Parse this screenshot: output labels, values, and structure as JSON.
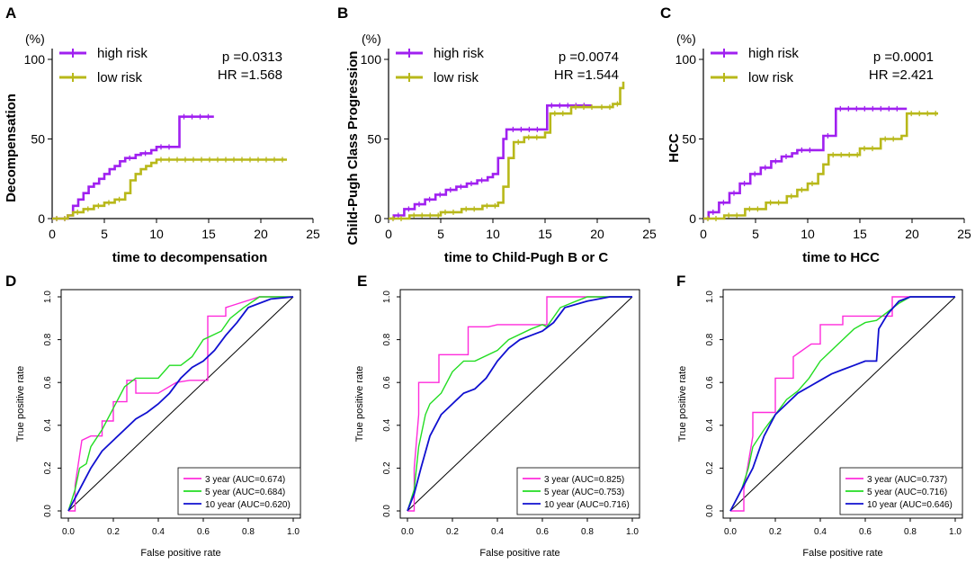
{
  "colors": {
    "high": "#a020f0",
    "low": "#b8b81a",
    "roc3": "#ff2bdb",
    "roc5": "#22dd22",
    "roc10": "#1010d0"
  },
  "chart_data": [
    {
      "panel": "A",
      "type": "line",
      "step": true,
      "xlabel": "time to decompensation",
      "ylabel": "Decompensation",
      "yunit": "(%)",
      "xlim": [
        0,
        25
      ],
      "ylim": [
        0,
        100
      ],
      "xticks": [
        "0",
        "5",
        "10",
        "15",
        "20",
        "25"
      ],
      "yticks": [
        "0",
        "50",
        "100"
      ],
      "stats": {
        "p": "p =0.0313",
        "hr": "HR =1.568"
      },
      "series": [
        {
          "name": "high risk",
          "color_key": "high",
          "x": [
            0,
            1.5,
            2.0,
            2.5,
            3.0,
            3.5,
            4.0,
            4.5,
            5.0,
            5.5,
            6.0,
            6.5,
            7.0,
            8.0,
            8.5,
            9.5,
            10.0,
            12.0,
            12.2,
            15.5
          ],
          "y": [
            0,
            2,
            8,
            12,
            16,
            20,
            22,
            25,
            28,
            31,
            33,
            36,
            38,
            40,
            41,
            43,
            45,
            45,
            64,
            64
          ]
        },
        {
          "name": "low risk",
          "color_key": "low",
          "x": [
            0,
            1.5,
            2.0,
            3.0,
            4.0,
            5.0,
            6.0,
            7.0,
            7.5,
            8.0,
            8.5,
            9.0,
            9.5,
            10.0,
            22.5
          ],
          "y": [
            0,
            2,
            4,
            6,
            8,
            10,
            12,
            16,
            24,
            28,
            31,
            33,
            35,
            37,
            37
          ]
        }
      ]
    },
    {
      "panel": "B",
      "type": "line",
      "step": true,
      "xlabel": "time to Child-Pugh  B or C",
      "ylabel": "Child-Pugh Class Progression",
      "yunit": "(%)",
      "xlim": [
        0,
        25
      ],
      "ylim": [
        0,
        100
      ],
      "xticks": [
        "0",
        "5",
        "10",
        "15",
        "20",
        "25"
      ],
      "yticks": [
        "0",
        "50",
        "100"
      ],
      "stats": {
        "p": "p =0.0074",
        "hr": "HR =1.544"
      },
      "series": [
        {
          "name": "high risk",
          "color_key": "high",
          "x": [
            0,
            0.5,
            1.5,
            2.5,
            3.5,
            4.5,
            5.5,
            6.5,
            7.5,
            8.5,
            9.5,
            10.0,
            10.5,
            11.0,
            11.3,
            11.5,
            15.0,
            15.2,
            19.5
          ],
          "y": [
            0,
            2,
            6,
            9,
            12,
            15,
            18,
            20,
            22,
            24,
            26,
            28,
            38,
            50,
            56,
            56,
            56,
            71,
            71
          ]
        },
        {
          "name": "low risk",
          "color_key": "low",
          "x": [
            0,
            2.0,
            5.0,
            7.0,
            9.0,
            10.5,
            11.0,
            11.5,
            12.0,
            13.0,
            15.0,
            15.5,
            17.5,
            20.0,
            21.5,
            22.2,
            22.5
          ],
          "y": [
            0,
            2,
            4,
            6,
            8,
            10,
            20,
            38,
            48,
            51,
            54,
            66,
            70,
            70,
            72,
            82,
            86
          ]
        }
      ]
    },
    {
      "panel": "C",
      "type": "line",
      "step": true,
      "xlabel": "time to HCC",
      "ylabel": "HCC",
      "yunit": "(%)",
      "xlim": [
        0,
        25
      ],
      "ylim": [
        0,
        100
      ],
      "xticks": [
        "0",
        "5",
        "10",
        "15",
        "20",
        "25"
      ],
      "yticks": [
        "0",
        "50",
        "100"
      ],
      "stats": {
        "p": "p =0.0001",
        "hr": "HR =2.421"
      },
      "series": [
        {
          "name": "high risk",
          "color_key": "high",
          "x": [
            0,
            0.5,
            1.5,
            2.5,
            3.5,
            4.5,
            5.5,
            6.5,
            7.5,
            8.5,
            9.0,
            11.0,
            11.5,
            12.5,
            12.7,
            19.5
          ],
          "y": [
            0,
            4,
            10,
            16,
            22,
            28,
            32,
            36,
            39,
            41,
            43,
            43,
            52,
            52,
            69,
            69
          ]
        },
        {
          "name": "low risk",
          "color_key": "low",
          "x": [
            0,
            2.0,
            4.0,
            6.0,
            8.0,
            9.0,
            10.0,
            11.0,
            11.5,
            12.0,
            15.0,
            17.0,
            19.0,
            19.5,
            22.5
          ],
          "y": [
            0,
            2,
            6,
            10,
            14,
            18,
            22,
            28,
            34,
            40,
            44,
            50,
            52,
            66,
            66
          ]
        }
      ]
    },
    {
      "panel": "D",
      "type": "line",
      "curve": "roc",
      "xlabel": "False positive rate",
      "ylabel": "True positive rate",
      "xlim": [
        0,
        1
      ],
      "ylim": [
        0,
        1
      ],
      "xticks": [
        "0.0",
        "0.2",
        "0.4",
        "0.6",
        "0.8",
        "1.0"
      ],
      "yticks": [
        "0.0",
        "0.2",
        "0.4",
        "0.6",
        "0.8",
        "1.0"
      ],
      "series": [
        {
          "name": "3 year (AUC=0.674)",
          "color_key": "roc3",
          "x": [
            0,
            0.03,
            0.03,
            0.06,
            0.1,
            0.15,
            0.15,
            0.2,
            0.2,
            0.26,
            0.26,
            0.3,
            0.3,
            0.4,
            0.48,
            0.54,
            0.62,
            0.62,
            0.7,
            0.7,
            0.85,
            1.0
          ],
          "y": [
            0,
            0,
            0.12,
            0.33,
            0.35,
            0.35,
            0.42,
            0.42,
            0.51,
            0.51,
            0.61,
            0.61,
            0.55,
            0.55,
            0.6,
            0.61,
            0.61,
            0.91,
            0.91,
            0.95,
            1.0,
            1.0
          ]
        },
        {
          "name": "5 year (AUC=0.684)",
          "color_key": "roc5",
          "x": [
            0,
            0.03,
            0.05,
            0.08,
            0.1,
            0.15,
            0.2,
            0.25,
            0.3,
            0.4,
            0.45,
            0.5,
            0.55,
            0.6,
            0.68,
            0.72,
            0.78,
            0.85,
            1.0
          ],
          "y": [
            0,
            0.1,
            0.2,
            0.22,
            0.3,
            0.38,
            0.48,
            0.58,
            0.62,
            0.62,
            0.68,
            0.68,
            0.72,
            0.8,
            0.84,
            0.9,
            0.95,
            1.0,
            1.0
          ]
        },
        {
          "name": "10 year (AUC=0.620)",
          "color_key": "roc10",
          "x": [
            0,
            0.05,
            0.1,
            0.15,
            0.2,
            0.25,
            0.3,
            0.35,
            0.4,
            0.45,
            0.5,
            0.55,
            0.6,
            0.65,
            0.7,
            0.75,
            0.8,
            0.9,
            1.0
          ],
          "y": [
            0,
            0.1,
            0.2,
            0.28,
            0.33,
            0.38,
            0.43,
            0.46,
            0.5,
            0.55,
            0.62,
            0.67,
            0.7,
            0.75,
            0.82,
            0.88,
            0.95,
            0.99,
            1.0
          ]
        }
      ]
    },
    {
      "panel": "E",
      "type": "line",
      "curve": "roc",
      "xlabel": "False positive rate",
      "ylabel": "True positive rate",
      "xlim": [
        0,
        1
      ],
      "ylim": [
        0,
        1
      ],
      "xticks": [
        "0.0",
        "0.2",
        "0.4",
        "0.6",
        "0.8",
        "1.0"
      ],
      "yticks": [
        "0.0",
        "0.2",
        "0.4",
        "0.6",
        "0.8",
        "1.0"
      ],
      "series": [
        {
          "name": "3 year (AUC=0.825)",
          "color_key": "roc3",
          "x": [
            0,
            0.03,
            0.03,
            0.05,
            0.05,
            0.08,
            0.08,
            0.14,
            0.14,
            0.27,
            0.27,
            0.36,
            0.4,
            0.62,
            0.62,
            1.0
          ],
          "y": [
            0,
            0,
            0.2,
            0.45,
            0.6,
            0.6,
            0.6,
            0.6,
            0.73,
            0.73,
            0.86,
            0.86,
            0.87,
            0.87,
            1.0,
            1.0
          ]
        },
        {
          "name": "5 year (AUC=0.753)",
          "color_key": "roc5",
          "x": [
            0,
            0.03,
            0.05,
            0.08,
            0.1,
            0.15,
            0.2,
            0.25,
            0.3,
            0.4,
            0.45,
            0.55,
            0.6,
            0.62,
            0.68,
            0.75,
            0.8,
            0.85,
            1.0
          ],
          "y": [
            0,
            0.1,
            0.3,
            0.45,
            0.5,
            0.55,
            0.65,
            0.7,
            0.7,
            0.75,
            0.8,
            0.85,
            0.87,
            0.86,
            0.95,
            0.98,
            1.0,
            1.0,
            1.0
          ]
        },
        {
          "name": "10 year (AUC=0.716)",
          "color_key": "roc10",
          "x": [
            0,
            0.03,
            0.06,
            0.1,
            0.15,
            0.2,
            0.25,
            0.3,
            0.35,
            0.4,
            0.45,
            0.5,
            0.55,
            0.6,
            0.65,
            0.7,
            0.8,
            0.9,
            1.0
          ],
          "y": [
            0,
            0.08,
            0.2,
            0.35,
            0.45,
            0.5,
            0.55,
            0.57,
            0.62,
            0.7,
            0.76,
            0.8,
            0.82,
            0.84,
            0.88,
            0.95,
            0.98,
            1.0,
            1.0
          ]
        }
      ]
    },
    {
      "panel": "F",
      "type": "line",
      "curve": "roc",
      "xlabel": "False positive rate",
      "ylabel": "True positive rate",
      "xlim": [
        0,
        1
      ],
      "ylim": [
        0,
        1
      ],
      "xticks": [
        "0.0",
        "0.2",
        "0.4",
        "0.6",
        "0.8",
        "1.0"
      ],
      "yticks": [
        "0.0",
        "0.2",
        "0.4",
        "0.6",
        "0.8",
        "1.0"
      ],
      "series": [
        {
          "name": "3 year (AUC=0.737)",
          "color_key": "roc3",
          "x": [
            0,
            0.06,
            0.06,
            0.1,
            0.1,
            0.2,
            0.2,
            0.28,
            0.28,
            0.36,
            0.4,
            0.4,
            0.5,
            0.5,
            0.6,
            0.6,
            0.72,
            0.72,
            1.0
          ],
          "y": [
            0,
            0,
            0.1,
            0.35,
            0.46,
            0.46,
            0.62,
            0.62,
            0.72,
            0.78,
            0.78,
            0.87,
            0.87,
            0.91,
            0.91,
            0.91,
            0.91,
            1.0,
            1.0
          ]
        },
        {
          "name": "5 year (AUC=0.716)",
          "color_key": "roc5",
          "x": [
            0,
            0.05,
            0.08,
            0.1,
            0.15,
            0.2,
            0.25,
            0.3,
            0.35,
            0.4,
            0.45,
            0.5,
            0.55,
            0.6,
            0.65,
            0.7,
            0.75,
            0.8,
            1.0
          ],
          "y": [
            0,
            0.1,
            0.2,
            0.3,
            0.38,
            0.45,
            0.52,
            0.56,
            0.62,
            0.7,
            0.75,
            0.8,
            0.85,
            0.88,
            0.89,
            0.93,
            0.97,
            1.0,
            1.0
          ]
        },
        {
          "name": "10 year (AUC=0.646)",
          "color_key": "roc10",
          "x": [
            0,
            0.05,
            0.1,
            0.15,
            0.2,
            0.25,
            0.3,
            0.35,
            0.4,
            0.45,
            0.5,
            0.55,
            0.6,
            0.65,
            0.66,
            0.7,
            0.75,
            0.8,
            1.0
          ],
          "y": [
            0,
            0.1,
            0.2,
            0.35,
            0.45,
            0.5,
            0.55,
            0.58,
            0.61,
            0.64,
            0.66,
            0.68,
            0.7,
            0.7,
            0.85,
            0.92,
            0.98,
            1.0,
            1.0
          ]
        }
      ]
    }
  ]
}
